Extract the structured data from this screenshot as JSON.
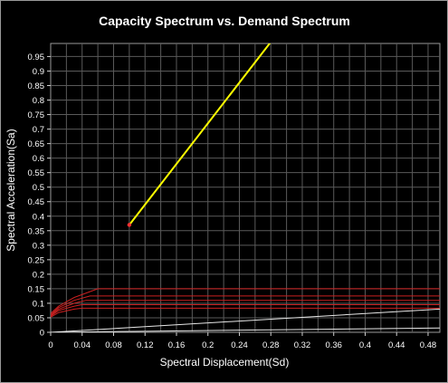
{
  "chart_data": {
    "type": "line",
    "title": "Capacity Spectrum vs. Demand Spectrum",
    "xlabel": "Spectral Displacement(Sd)",
    "ylabel": "Spectral Acceleration(Sa)",
    "xlim": [
      0,
      0.495
    ],
    "ylim": [
      0,
      0.995
    ],
    "xticks": [
      "0",
      "0.04",
      "0.08",
      "0.12",
      "0.16",
      "0.2",
      "0.24",
      "0.28",
      "0.32",
      "0.36",
      "0.4",
      "0.44",
      "0.48"
    ],
    "yticks": [
      "0",
      "0.05",
      "0.1",
      "0.15",
      "0.2",
      "0.25",
      "0.3",
      "0.35",
      "0.4",
      "0.45",
      "0.5",
      "0.55",
      "0.6",
      "0.65",
      "0.7",
      "0.75",
      "0.8",
      "0.85",
      "0.9",
      "0.95"
    ],
    "grid": true,
    "legend": "none",
    "background": "#000000",
    "grid_color": "#5a5a5a",
    "series": [
      {
        "color": "#ffff00",
        "x": [
          0.1,
          0.28
        ],
        "y": [
          0.37,
          1.0
        ]
      },
      {
        "color": "#cc2020",
        "x": [
          0,
          0.01,
          0.03,
          0.05,
          0.06,
          0.495
        ],
        "y": [
          0.065,
          0.09,
          0.12,
          0.14,
          0.15,
          0.15
        ]
      },
      {
        "color": "#cc2020",
        "x": [
          0,
          0.01,
          0.03,
          0.05,
          0.495
        ],
        "y": [
          0.06,
          0.085,
          0.11,
          0.125,
          0.125
        ]
      },
      {
        "color": "#cc2020",
        "x": [
          0,
          0.01,
          0.03,
          0.045,
          0.495
        ],
        "y": [
          0.058,
          0.08,
          0.1,
          0.11,
          0.11
        ]
      },
      {
        "color": "#cc2020",
        "x": [
          0,
          0.01,
          0.03,
          0.04,
          0.495
        ],
        "y": [
          0.055,
          0.075,
          0.09,
          0.095,
          0.095
        ]
      },
      {
        "color": "#cc2020",
        "x": [
          0,
          0.01,
          0.03,
          0.04,
          0.495
        ],
        "y": [
          0.052,
          0.068,
          0.08,
          0.083,
          0.083
        ]
      },
      {
        "color": "#e8e8e8",
        "x": [
          0,
          0.495
        ],
        "y": [
          0,
          0.08
        ]
      },
      {
        "color": "#e8e8e8",
        "x": [
          0,
          0.495
        ],
        "y": [
          0,
          0.015
        ]
      }
    ]
  }
}
